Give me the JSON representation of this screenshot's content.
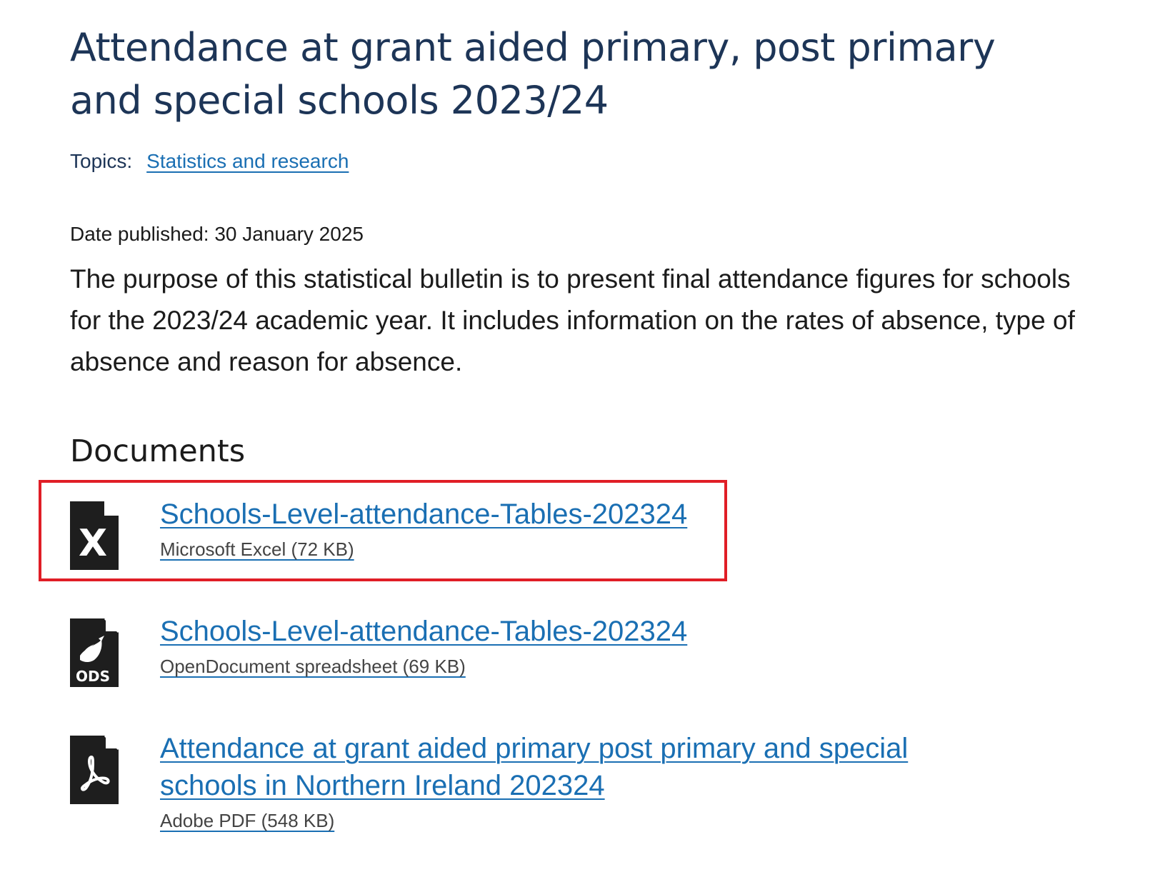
{
  "page": {
    "title": "Attendance at grant aided primary, post primary and special schools 2023/24",
    "topics_label": "Topics:",
    "topic_link": "Statistics and research",
    "date_published": "Date published: 30 January 2025",
    "summary": "The purpose of this statistical bulletin is to present final attendance figures for schools for the 2023/24 academic year. It includes information on the rates of absence, type of absence and reason for absence."
  },
  "documents": {
    "heading": "Documents",
    "items": [
      {
        "title": "Schools-Level-attendance-Tables-202324",
        "meta": "Microsoft Excel (72 KB)",
        "icon": "excel-file-icon",
        "highlighted": true
      },
      {
        "title": "Schools-Level-attendance-Tables-202324",
        "meta": "OpenDocument spreadsheet (69 KB)",
        "icon": "ods-file-icon",
        "icon_label": "ODS"
      },
      {
        "title": "Attendance at grant aided primary post primary and special schools in Northern Ireland 202324",
        "meta": "Adobe PDF (548 KB)",
        "icon": "pdf-file-icon"
      }
    ]
  },
  "colors": {
    "heading": "#1d3557",
    "link": "#1a6fb3",
    "highlight": "#e01e26",
    "icon": "#1e1e1e"
  }
}
